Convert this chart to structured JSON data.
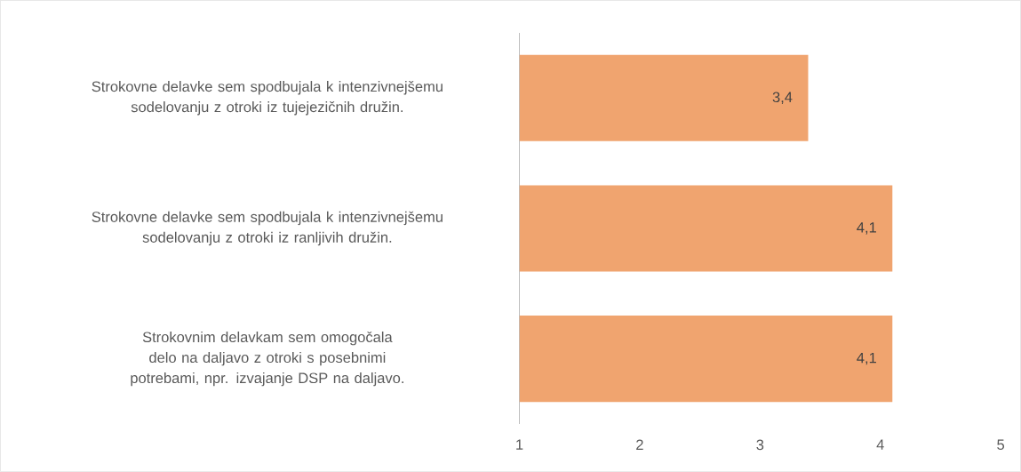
{
  "chart_data": {
    "type": "bar",
    "orientation": "horizontal",
    "categories": [
      "Strokovne delavke sem spodbujala k intenzivnejšemu sodelovanju z otroki iz tujejezičnih družin.",
      "Strokovne delavke sem spodbujala k intenzivnejšemu sodelovanju z otroki iz ranljivih družin.",
      "Strokovnim delavkam sem omogočala delo na daljavo z otroki s posebnimi potrebami, npr. izvajanje DSP na daljavo."
    ],
    "values": [
      3.4,
      4.1,
      4.1
    ],
    "value_labels": [
      "3,4",
      "4,1",
      "4,1"
    ],
    "color": "#f0a46f",
    "xlim": [
      1,
      5
    ],
    "xticks": [
      1,
      2,
      3,
      4,
      5
    ],
    "grid": false
  }
}
